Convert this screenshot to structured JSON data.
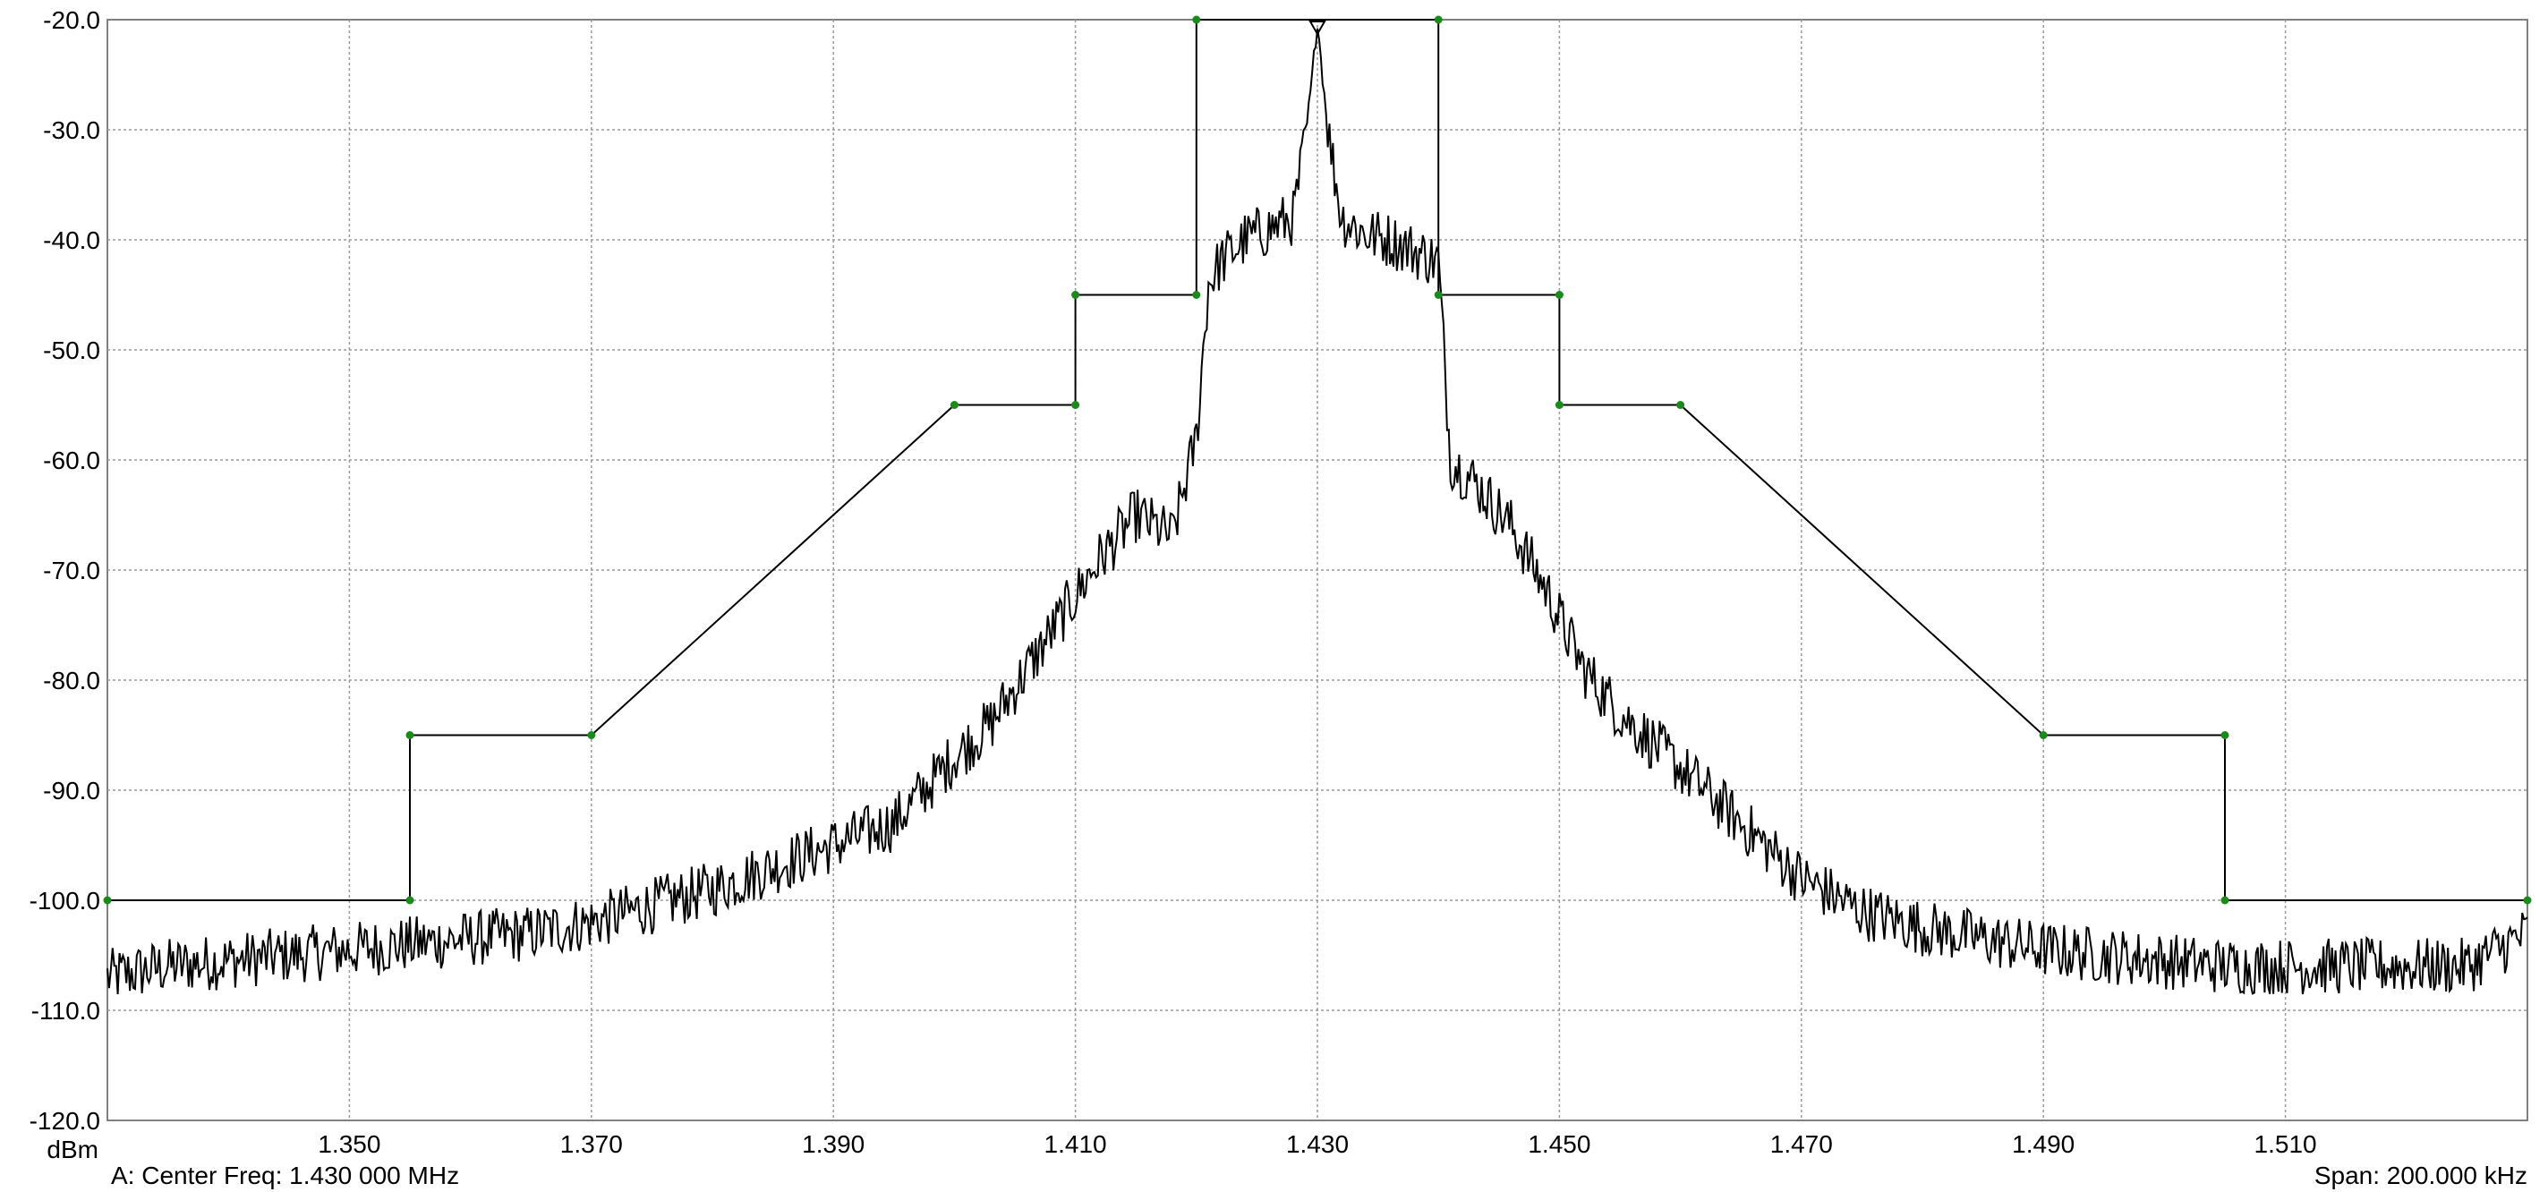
{
  "chart_data": {
    "type": "line",
    "ylabel": "dBm",
    "xlim": [
      1.33,
      1.53
    ],
    "ylim": [
      -120,
      -20
    ],
    "grid": true,
    "y_ticks": [
      "-20.0",
      "-30.0",
      "-40.0",
      "-50.0",
      "-60.0",
      "-70.0",
      "-80.0",
      "-90.0",
      "-100.0",
      "-110.0",
      "-120.0"
    ],
    "x_ticks": [
      "1.350",
      "1.370",
      "1.390",
      "1.410",
      "1.430",
      "1.450",
      "1.470",
      "1.490",
      "1.510"
    ],
    "footer_left": "A: Center Freq: 1.430 000 MHz",
    "footer_right": "Span: 200.000 kHz",
    "series": [
      {
        "role": "mask",
        "color": "#000000",
        "marker_color": "#1a8a1a",
        "x": [
          1.33,
          1.355,
          1.355,
          1.37,
          1.4,
          1.41,
          1.41,
          1.42,
          1.42,
          1.44,
          1.44,
          1.45,
          1.45,
          1.46,
          1.49,
          1.505,
          1.505,
          1.53
        ],
        "y": [
          -100,
          -100,
          -85,
          -85,
          -55,
          -55,
          -45,
          -45,
          -20,
          -20,
          -45,
          -45,
          -55,
          -55,
          -85,
          -85,
          -100,
          -100
        ]
      },
      {
        "role": "spectrum",
        "color": "#000000",
        "x": [
          1.33,
          1.335,
          1.34,
          1.345,
          1.35,
          1.355,
          1.36,
          1.365,
          1.37,
          1.375,
          1.38,
          1.385,
          1.39,
          1.395,
          1.4,
          1.403,
          1.406,
          1.409,
          1.412,
          1.415,
          1.418,
          1.42,
          1.421,
          1.422,
          1.424,
          1.426,
          1.428,
          1.429,
          1.4295,
          1.43,
          1.4305,
          1.431,
          1.432,
          1.434,
          1.436,
          1.438,
          1.44,
          1.441,
          1.443,
          1.446,
          1.449,
          1.452,
          1.455,
          1.46,
          1.465,
          1.47,
          1.475,
          1.48,
          1.485,
          1.49,
          1.495,
          1.5,
          1.505,
          1.51,
          1.515,
          1.52,
          1.525,
          1.53
        ],
        "y": [
          -107,
          -106,
          -105.5,
          -105,
          -104.5,
          -104,
          -103.5,
          -103,
          -102,
          -100.5,
          -99,
          -97,
          -95,
          -93,
          -87,
          -84,
          -79,
          -74,
          -69,
          -65,
          -67,
          -58,
          -44,
          -42,
          -40,
          -39,
          -38,
          -31,
          -26,
          -20,
          -26,
          -31,
          -38,
          -39.5,
          -40,
          -41,
          -42,
          -60,
          -62,
          -66,
          -72,
          -79,
          -83,
          -88,
          -93,
          -98,
          -101,
          -102.5,
          -103.5,
          -104.5,
          -105,
          -105.5,
          -106,
          -106,
          -106,
          -106,
          -106,
          -103
        ]
      }
    ]
  }
}
